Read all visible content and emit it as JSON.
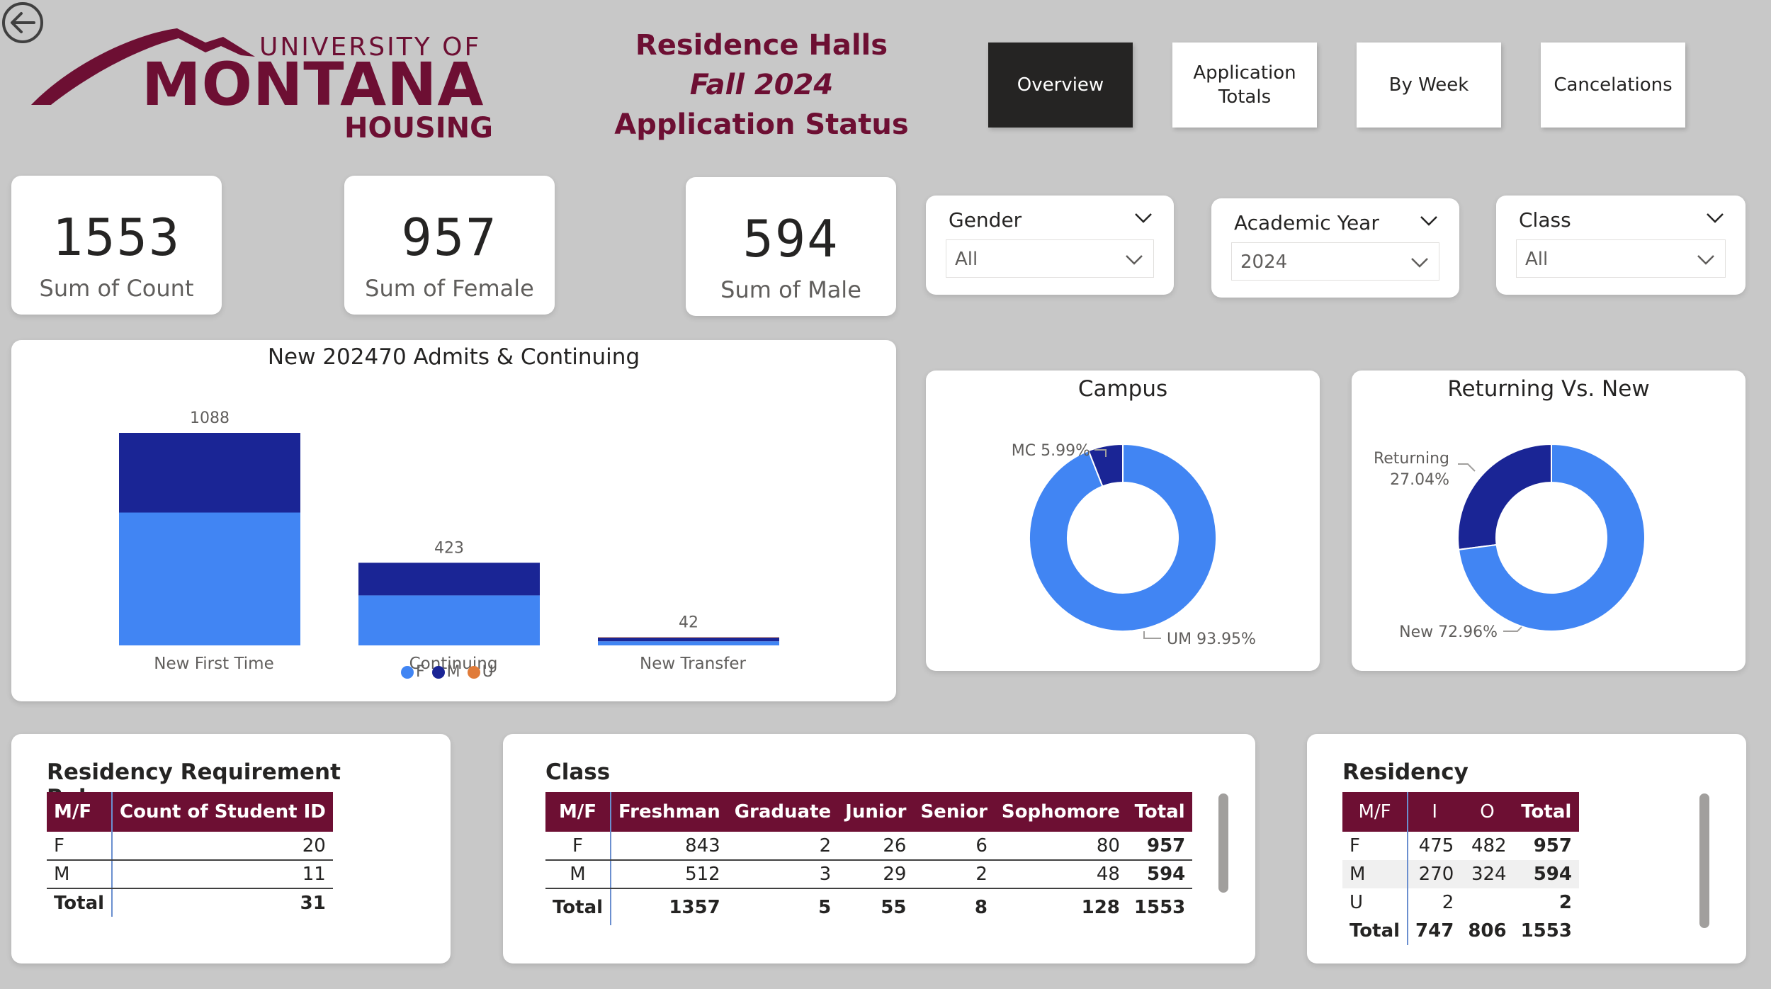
{
  "header": {
    "logo": {
      "line1": "UNIVERSITY OF",
      "line2": "MONTANA",
      "line3": "HOUSING"
    },
    "title_line1": "Residence Halls",
    "title_line2": "Fall 2024",
    "title_line3": "Application Status"
  },
  "nav": [
    {
      "label": "Overview"
    },
    {
      "label": "Application Totals"
    },
    {
      "label": "By Week"
    },
    {
      "label": "Cancelations"
    }
  ],
  "kpis": [
    {
      "value": "1553",
      "label": "Sum of Count"
    },
    {
      "value": "957",
      "label": "Sum of Female"
    },
    {
      "value": "594",
      "label": "Sum of Male"
    }
  ],
  "slicers": [
    {
      "title": "Gender",
      "value": "All"
    },
    {
      "title": "Academic Year",
      "value": "2024"
    },
    {
      "title": "Class",
      "value": "All"
    }
  ],
  "colors": {
    "accent": "#6d0f33",
    "female": "#4185f3",
    "male": "#1a2595",
    "unknown": "#e07b39",
    "dark": "#252423"
  },
  "chart_data": [
    {
      "type": "bar",
      "stacked": true,
      "title": "New 202470 Admits & Continuing",
      "categories": [
        "New First Time",
        "Continuing",
        "New Transfer"
      ],
      "totals": [
        1088,
        423,
        42
      ],
      "series": [
        {
          "name": "F",
          "values": [
            680,
            256,
            21
          ]
        },
        {
          "name": "M",
          "values": [
            408,
            167,
            19
          ]
        },
        {
          "name": "U",
          "values": [
            0,
            0,
            2
          ]
        }
      ],
      "legend": [
        "F",
        "M",
        "U"
      ]
    },
    {
      "type": "pie",
      "title": "Campus",
      "slices": [
        {
          "name": "MC",
          "value": 5.99,
          "label": "MC 5.99%"
        },
        {
          "name": "UM",
          "value": 93.95,
          "label": "UM 93.95%"
        }
      ]
    },
    {
      "type": "pie",
      "title": "Returning Vs. New",
      "slices": [
        {
          "name": "Returning",
          "value": 27.04,
          "label_line1": "Returning",
          "label_line2": "27.04%"
        },
        {
          "name": "New",
          "value": 72.96,
          "label": "New 72.96%"
        }
      ]
    }
  ],
  "residency_releases": {
    "title": "Residency Requirement Releases",
    "headers": [
      "M/F",
      "Count of Student ID"
    ],
    "rows": [
      [
        "F",
        "20"
      ],
      [
        "M",
        "11"
      ]
    ],
    "total": [
      "Total",
      "31"
    ]
  },
  "class_table": {
    "title": "Class",
    "headers": [
      "M/F",
      "Freshman",
      "Graduate",
      "Junior",
      "Senior",
      "Sophomore",
      "Total"
    ],
    "rows": [
      [
        "F",
        "843",
        "2",
        "26",
        "6",
        "80",
        "957"
      ],
      [
        "M",
        "512",
        "3",
        "29",
        "2",
        "48",
        "594"
      ]
    ],
    "total": [
      "Total",
      "1357",
      "5",
      "55",
      "8",
      "128",
      "1553"
    ]
  },
  "residency_table": {
    "title": "Residency",
    "headers": [
      "M/F",
      "I",
      "O",
      "Total"
    ],
    "rows": [
      [
        "F",
        "475",
        "482",
        "957"
      ],
      [
        "M",
        "270",
        "324",
        "594"
      ],
      [
        "U",
        "2",
        "",
        "2"
      ]
    ],
    "total": [
      "Total",
      "747",
      "806",
      "1553"
    ]
  }
}
